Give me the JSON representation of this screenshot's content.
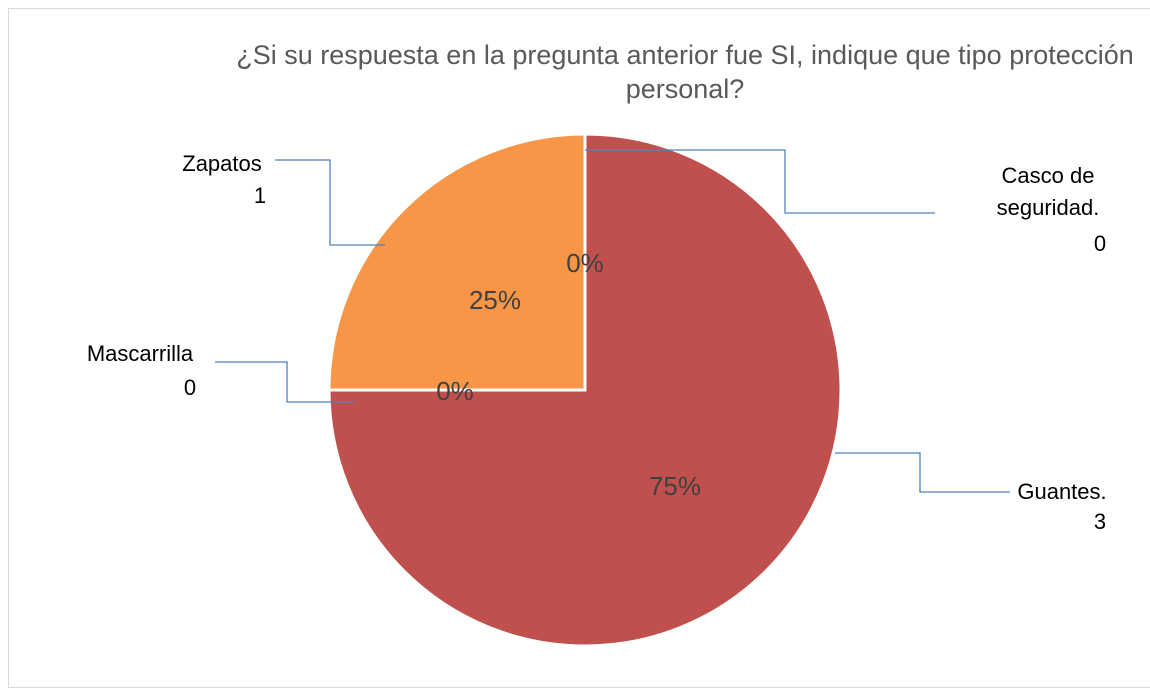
{
  "chart_data": {
    "type": "pie",
    "title": "¿Si su respuesta en la pregunta anterior fue SI, indique que tipo protección personal?",
    "categories": [
      "Casco de seguridad.",
      "Guantes.",
      "Mascarrilla",
      "Zapatos"
    ],
    "values": [
      0,
      3,
      0,
      1
    ],
    "percentages": [
      0,
      75,
      0,
      25
    ],
    "percentage_labels": [
      "0%",
      "75%",
      "0%",
      "25%"
    ],
    "colors": [
      "#4f81bd",
      "#c0504d",
      "#9bbb59",
      "#f79646"
    ]
  }
}
